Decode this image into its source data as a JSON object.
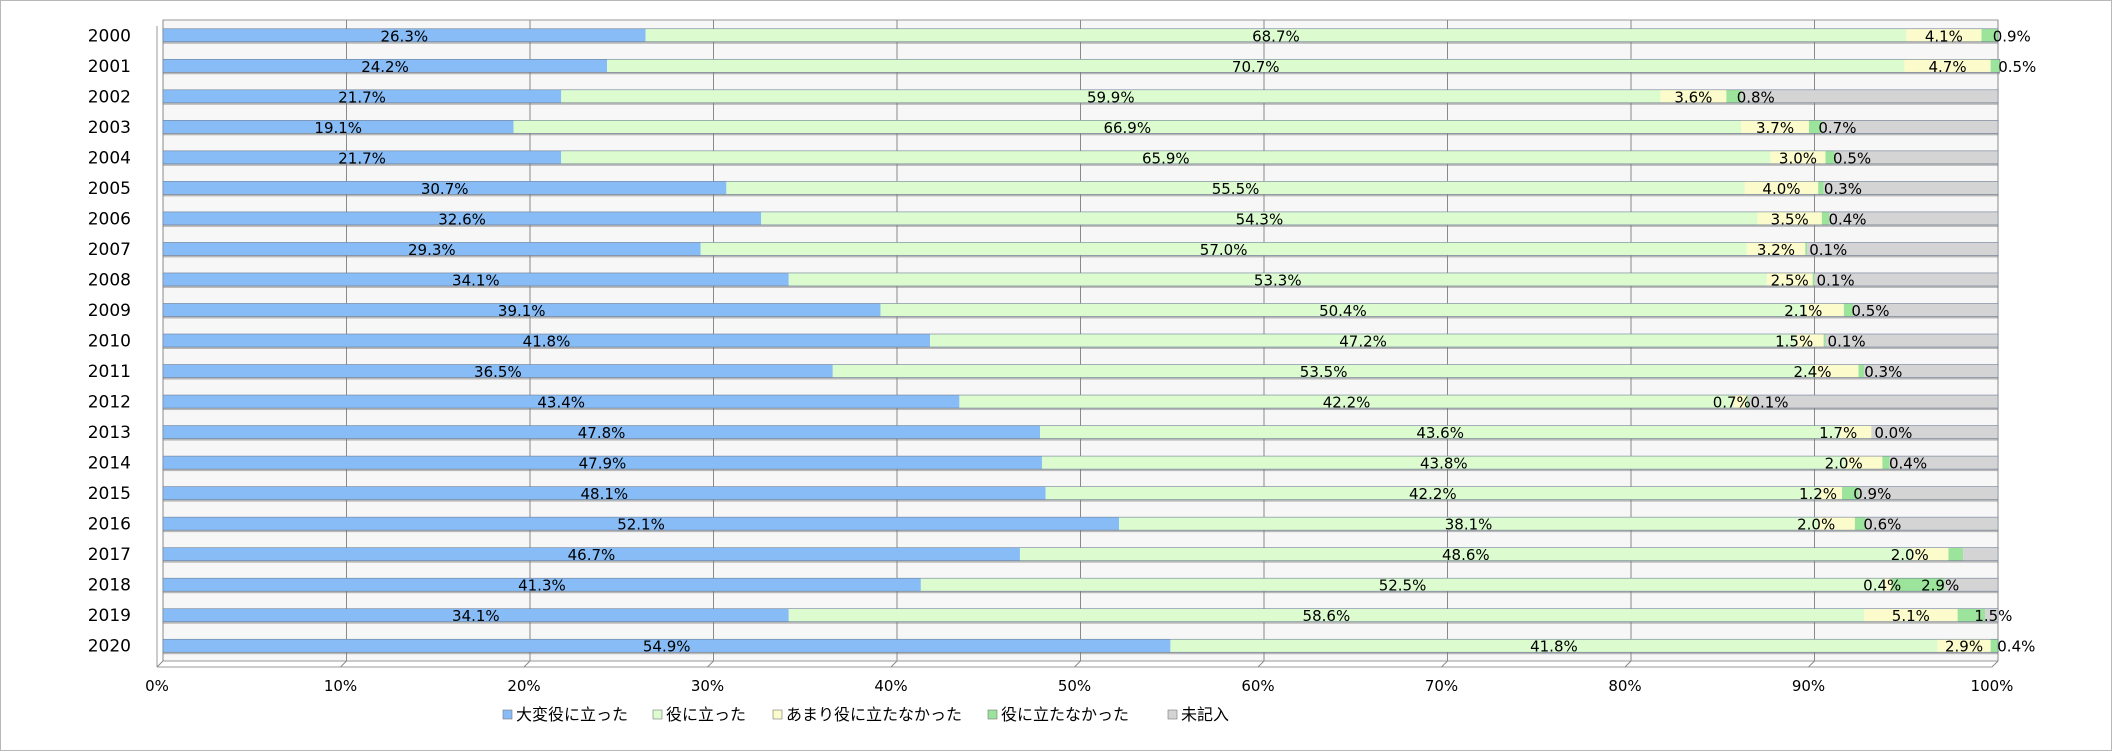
{
  "chart_data": {
    "type": "bar",
    "orientation": "horizontal",
    "stacked": true,
    "percent": true,
    "title": "",
    "xlabel": "",
    "ylabel": "",
    "xlim": [
      0,
      100
    ],
    "x_ticks": [
      "0%",
      "10%",
      "20%",
      "30%",
      "40%",
      "50%",
      "60%",
      "70%",
      "80%",
      "90%",
      "100%"
    ],
    "categories": [
      "2000",
      "2001",
      "2002",
      "2003",
      "2004",
      "2005",
      "2006",
      "2007",
      "2008",
      "2009",
      "2010",
      "2011",
      "2012",
      "2013",
      "2014",
      "2015",
      "2016",
      "2017",
      "2018",
      "2019",
      "2020"
    ],
    "series": [
      {
        "name": "大変役に立った",
        "color": "#87bcf7",
        "values": [
          26.3,
          24.2,
          21.7,
          19.1,
          21.7,
          30.7,
          32.6,
          29.3,
          34.1,
          39.1,
          41.8,
          36.5,
          43.4,
          47.8,
          47.9,
          48.1,
          52.1,
          46.7,
          41.3,
          34.1,
          54.9
        ]
      },
      {
        "name": "役に立った",
        "color": "#dcfcd0",
        "values": [
          68.7,
          70.7,
          59.9,
          66.9,
          65.9,
          55.5,
          54.3,
          57.0,
          53.3,
          50.4,
          47.2,
          53.5,
          42.2,
          43.6,
          43.8,
          42.2,
          38.1,
          48.6,
          52.5,
          58.6,
          41.8
        ]
      },
      {
        "name": "あまり役に立たなかった",
        "color": "#fbfbcc",
        "values": [
          4.1,
          4.7,
          3.6,
          3.7,
          3.0,
          4.0,
          3.5,
          3.2,
          2.5,
          2.1,
          1.5,
          2.4,
          0.7,
          1.7,
          2.0,
          1.2,
          2.0,
          2.0,
          0.4,
          5.1,
          2.9
        ]
      },
      {
        "name": "役に立たなかった",
        "color": "#9ce39c",
        "values": [
          0.9,
          0.5,
          0.8,
          0.7,
          0.5,
          0.3,
          0.4,
          0.1,
          0.1,
          0.5,
          0.1,
          0.3,
          0.1,
          0.0,
          0.4,
          0.9,
          0.6,
          0.8,
          2.9,
          1.5,
          0.4
        ]
      },
      {
        "name": "未記入",
        "color": "#d4d4d4",
        "values": [
          0.0,
          0.0,
          14.0,
          9.6,
          8.9,
          9.5,
          9.2,
          10.4,
          10.0,
          7.9,
          9.4,
          7.3,
          13.6,
          6.9,
          5.9,
          7.6,
          7.2,
          1.9,
          2.9,
          0.7,
          0.0
        ]
      }
    ],
    "data_labels": [
      [
        "26.3%",
        "68.7%",
        "4.1%",
        "0.9%",
        ""
      ],
      [
        "24.2%",
        "70.7%",
        "4.7%",
        "0.5%",
        ""
      ],
      [
        "21.7%",
        "59.9%",
        "3.6%",
        "0.8%",
        ""
      ],
      [
        "19.1%",
        "66.9%",
        "3.7%",
        "0.7%",
        ""
      ],
      [
        "21.7%",
        "65.9%",
        "3.0%",
        "0.5%",
        ""
      ],
      [
        "30.7%",
        "55.5%",
        "4.0%",
        "0.3%",
        ""
      ],
      [
        "32.6%",
        "54.3%",
        "3.5%",
        "0.4%",
        ""
      ],
      [
        "29.3%",
        "57.0%",
        "3.2%",
        "0.1%",
        ""
      ],
      [
        "34.1%",
        "53.3%",
        "2.5%",
        "0.1%",
        ""
      ],
      [
        "39.1%",
        "50.4%",
        "2.1%",
        "0.5%",
        ""
      ],
      [
        "41.8%",
        "47.2%",
        "1.5%",
        "0.1%",
        ""
      ],
      [
        "36.5%",
        "53.5%",
        "2.4%",
        "0.3%",
        ""
      ],
      [
        "43.4%",
        "42.2%",
        "0.7%",
        "0.1%",
        ""
      ],
      [
        "47.8%",
        "43.6%",
        "1.7%",
        "0.0%",
        ""
      ],
      [
        "47.9%",
        "43.8%",
        "2.0%",
        "0.4%",
        ""
      ],
      [
        "48.1%",
        "42.2%",
        "1.2%",
        "0.9%",
        ""
      ],
      [
        "52.1%",
        "38.1%",
        "2.0%",
        "0.6%",
        ""
      ],
      [
        "46.7%",
        "48.6%",
        "2.0%",
        "",
        ""
      ],
      [
        "41.3%",
        "52.5%",
        "0.4%",
        "2.9%",
        ""
      ],
      [
        "34.1%",
        "58.6%",
        "5.1%",
        "1.5%",
        ""
      ],
      [
        "54.9%",
        "41.8%",
        "2.9%",
        "0.4%",
        ""
      ]
    ],
    "grid": true,
    "legend_position": "bottom"
  }
}
